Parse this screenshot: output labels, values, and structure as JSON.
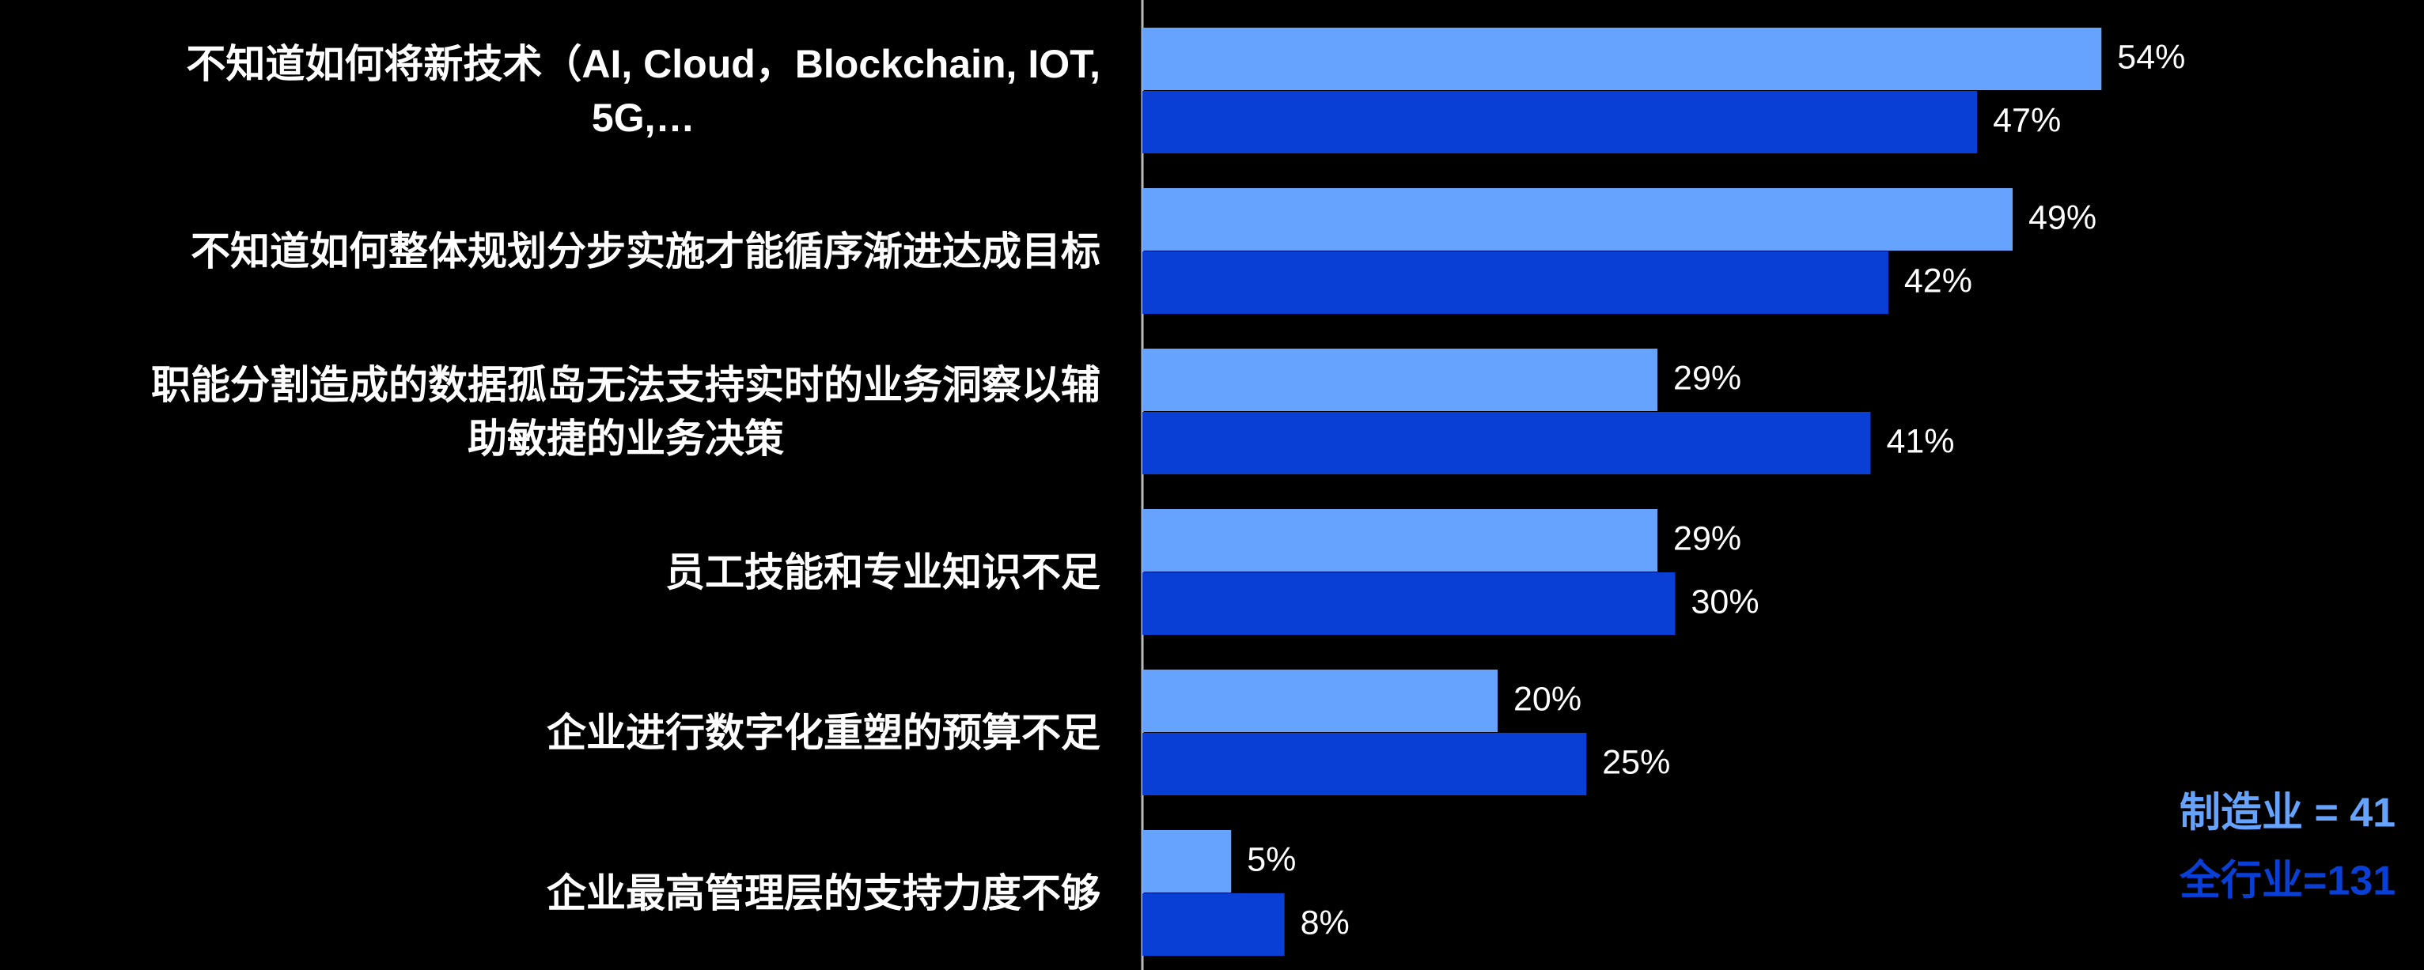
{
  "chart_data": {
    "type": "bar",
    "orientation": "horizontal",
    "categories": [
      "不知道如何将新技术（AI, Cloud，Blockchain, IOT,\n5G,…",
      "不知道如何整体规划分步实施才能循序渐进达成目标",
      "职能分割造成的数据孤岛无法支持实时的业务洞察以辅\n助敏捷的业务决策",
      "员工技能和专业知识不足",
      "企业进行数字化重塑的预算不足",
      "企业最高管理层的支持力度不够"
    ],
    "series": [
      {
        "name": "制造业 = 41",
        "color": "#66a3ff",
        "values": [
          54,
          49,
          29,
          29,
          20,
          5
        ],
        "value_labels": [
          "54%",
          "49%",
          "29%",
          "29%",
          "20%",
          "5%"
        ]
      },
      {
        "name": "全行业=131",
        "color": "#0a3fd6",
        "values": [
          47,
          42,
          41,
          30,
          25,
          8
        ],
        "value_labels": [
          "47%",
          "42%",
          "41%",
          "30%",
          "25%",
          "8%"
        ]
      }
    ],
    "legend": "bottom-right"
  }
}
